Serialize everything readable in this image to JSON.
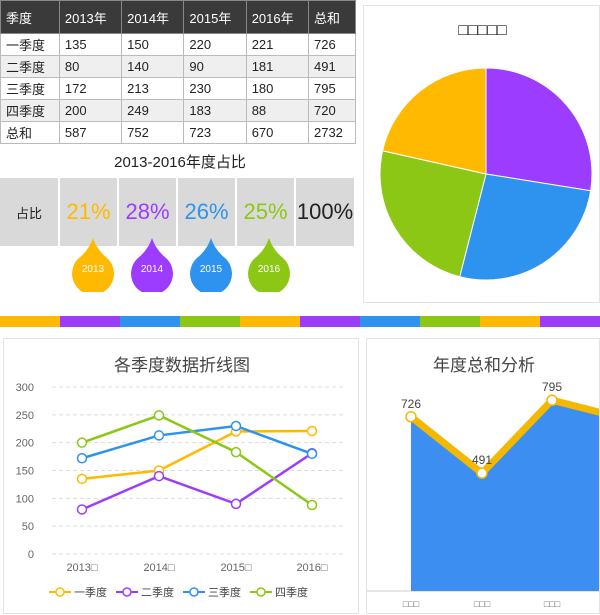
{
  "colors": {
    "q1": "#FFB900",
    "q2": "#9B3CFF",
    "q3": "#2E93EE",
    "q4": "#8DC715",
    "area": "#3C8FF0",
    "area_edge": "#F5B800",
    "header_bg": "#3a3a3a"
  },
  "table": {
    "headers": [
      "季度",
      "2013年",
      "2014年",
      "2015年",
      "2016年",
      "总和"
    ],
    "rows": [
      [
        "一季度",
        "135",
        "150",
        "220",
        "221",
        "726"
      ],
      [
        "二季度",
        "80",
        "140",
        "90",
        "181",
        "491"
      ],
      [
        "三季度",
        "172",
        "213",
        "230",
        "180",
        "795"
      ],
      [
        "四季度",
        "200",
        "249",
        "183",
        "88",
        "720"
      ],
      [
        "总和",
        "587",
        "752",
        "723",
        "670",
        "2732"
      ]
    ]
  },
  "share": {
    "title": "2013-2016年度占比",
    "row_label": "占比",
    "values": [
      "21%",
      "28%",
      "26%",
      "25%"
    ],
    "total": "100%",
    "drops": [
      "2013",
      "2014",
      "2015",
      "2016"
    ]
  },
  "pie": {
    "title": "□□□□□"
  },
  "chart_data": [
    {
      "type": "pie",
      "title": "□□□□□",
      "labels": [
        "2013",
        "2014",
        "2015",
        "2016"
      ],
      "values": [
        587,
        752,
        723,
        670
      ]
    },
    {
      "type": "line",
      "title": "各季度数据折线图",
      "categories": [
        "2013□",
        "2014□",
        "2015□",
        "2016□"
      ],
      "yticks": [
        "0",
        "50",
        "100",
        "150",
        "200",
        "250",
        "300"
      ],
      "ylim": [
        0,
        300
      ],
      "legend_position": "bottom",
      "series": [
        {
          "name": "一季度",
          "values": [
            135,
            150,
            220,
            221
          ]
        },
        {
          "name": "二季度",
          "values": [
            80,
            140,
            90,
            181
          ]
        },
        {
          "name": "三季度",
          "values": [
            172,
            213,
            230,
            180
          ]
        },
        {
          "name": "四季度",
          "values": [
            200,
            249,
            183,
            88
          ]
        }
      ]
    },
    {
      "type": "area",
      "title": "年度总和分析",
      "categories": [
        "□□□",
        "□□□",
        "□□□",
        "□□□"
      ],
      "values": [
        726,
        491,
        795,
        720
      ],
      "labels": [
        "726",
        "491",
        "795",
        ""
      ],
      "ylim": [
        0,
        850
      ]
    }
  ]
}
